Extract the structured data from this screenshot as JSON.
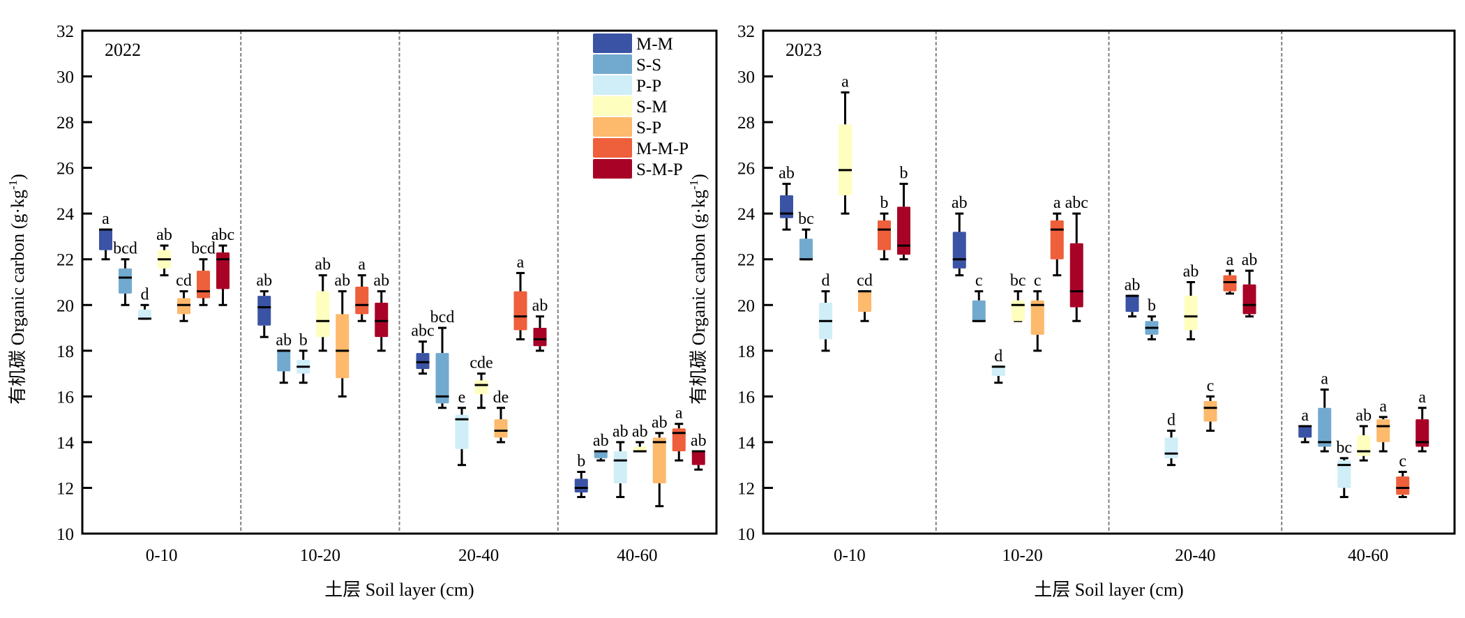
{
  "chart_data": [
    {
      "type": "box",
      "panel_label": "2022",
      "xlabel": "土层 Soil layer (cm)",
      "ylabel_main": "有机碳 Organic carbon (g·kg",
      "ylabel_sup": "-1",
      "ylabel_end": ")",
      "ylim": [
        10,
        32
      ],
      "yticks": [
        10,
        12,
        14,
        16,
        18,
        20,
        22,
        24,
        26,
        28,
        30,
        32
      ],
      "categories": [
        "0-10",
        "10-20",
        "20-40",
        "40-60"
      ],
      "legend_position": "top-right",
      "series": [
        {
          "name": "M-M",
          "color": "#3a53a4",
          "boxes": [
            {
              "wlo": 22.0,
              "q1": 22.4,
              "med": 23.3,
              "q3": 23.3,
              "whi": 23.3,
              "letter": "a"
            },
            {
              "wlo": 18.6,
              "q1": 19.1,
              "med": 19.9,
              "q3": 20.4,
              "whi": 20.6,
              "letter": "ab"
            },
            {
              "wlo": 17.0,
              "q1": 17.2,
              "med": 17.5,
              "q3": 17.9,
              "whi": 18.4,
              "letter": "abc"
            },
            {
              "wlo": 11.6,
              "q1": 11.8,
              "med": 12.0,
              "q3": 12.4,
              "whi": 12.7,
              "letter": "b"
            }
          ]
        },
        {
          "name": "S-S",
          "color": "#72aacf",
          "boxes": [
            {
              "wlo": 20.0,
              "q1": 20.5,
              "med": 21.2,
              "q3": 21.6,
              "whi": 22.0,
              "letter": "bcd"
            },
            {
              "wlo": 16.6,
              "q1": 17.1,
              "med": 18.0,
              "q3": 18.0,
              "whi": 18.0,
              "letter": "ab"
            },
            {
              "wlo": 15.5,
              "q1": 15.7,
              "med": 16.0,
              "q3": 17.9,
              "whi": 19.0,
              "letter": "bcd"
            },
            {
              "wlo": 13.2,
              "q1": 13.3,
              "med": 13.6,
              "q3": 13.6,
              "whi": 13.6,
              "letter": "ab"
            }
          ]
        },
        {
          "name": "P-P",
          "color": "#cfeef7",
          "boxes": [
            {
              "wlo": 19.4,
              "q1": 19.4,
              "med": 19.4,
              "q3": 19.8,
              "whi": 20.0,
              "letter": "d"
            },
            {
              "wlo": 16.6,
              "q1": 17.0,
              "med": 17.3,
              "q3": 17.6,
              "whi": 18.0,
              "letter": "b"
            },
            {
              "wlo": 13.0,
              "q1": 13.7,
              "med": 15.0,
              "q3": 15.2,
              "whi": 15.5,
              "letter": "e"
            },
            {
              "wlo": 11.6,
              "q1": 12.2,
              "med": 13.2,
              "q3": 13.6,
              "whi": 14.0,
              "letter": "ab"
            }
          ]
        },
        {
          "name": "S-M",
          "color": "#fefebf",
          "boxes": [
            {
              "wlo": 21.3,
              "q1": 21.6,
              "med": 22.0,
              "q3": 22.4,
              "whi": 22.6,
              "letter": "ab"
            },
            {
              "wlo": 18.0,
              "q1": 18.6,
              "med": 19.3,
              "q3": 20.6,
              "whi": 21.3,
              "letter": "ab"
            },
            {
              "wlo": 15.5,
              "q1": 16.1,
              "med": 16.5,
              "q3": 16.7,
              "whi": 17.0,
              "letter": "cde"
            },
            {
              "wlo": 13.6,
              "q1": 13.6,
              "med": 13.6,
              "q3": 13.8,
              "whi": 14.0,
              "letter": "ab"
            }
          ]
        },
        {
          "name": "S-P",
          "color": "#fdb96c",
          "boxes": [
            {
              "wlo": 19.3,
              "q1": 19.6,
              "med": 20.0,
              "q3": 20.3,
              "whi": 20.6,
              "letter": "cd"
            },
            {
              "wlo": 16.0,
              "q1": 16.8,
              "med": 18.0,
              "q3": 19.6,
              "whi": 20.6,
              "letter": "ab"
            },
            {
              "wlo": 14.0,
              "q1": 14.2,
              "med": 14.5,
              "q3": 15.0,
              "whi": 15.5,
              "letter": "de"
            },
            {
              "wlo": 11.2,
              "q1": 12.2,
              "med": 14.0,
              "q3": 14.2,
              "whi": 14.4,
              "letter": "ab"
            }
          ]
        },
        {
          "name": "M-M-P",
          "color": "#ee5f3b",
          "boxes": [
            {
              "wlo": 20.0,
              "q1": 20.3,
              "med": 20.6,
              "q3": 21.5,
              "whi": 22.0,
              "letter": "bcd"
            },
            {
              "wlo": 19.3,
              "q1": 19.6,
              "med": 20.0,
              "q3": 20.8,
              "whi": 21.3,
              "letter": "a"
            },
            {
              "wlo": 18.5,
              "q1": 18.9,
              "med": 19.5,
              "q3": 20.6,
              "whi": 21.4,
              "letter": "a"
            },
            {
              "wlo": 13.2,
              "q1": 13.6,
              "med": 14.4,
              "q3": 14.6,
              "whi": 14.8,
              "letter": "a"
            }
          ]
        },
        {
          "name": "S-M-P",
          "color": "#a80326",
          "boxes": [
            {
              "wlo": 20.0,
              "q1": 20.7,
              "med": 22.0,
              "q3": 22.3,
              "whi": 22.6,
              "letter": "abc"
            },
            {
              "wlo": 18.0,
              "q1": 18.6,
              "med": 19.3,
              "q3": 20.1,
              "whi": 20.6,
              "letter": "ab"
            },
            {
              "wlo": 18.0,
              "q1": 18.2,
              "med": 18.5,
              "q3": 19.0,
              "whi": 19.5,
              "letter": "ab"
            },
            {
              "wlo": 12.8,
              "q1": 13.0,
              "med": 13.6,
              "q3": 13.6,
              "whi": 13.6,
              "letter": "ab"
            }
          ]
        }
      ]
    },
    {
      "type": "box",
      "panel_label": "2023",
      "xlabel": "土层 Soil layer (cm)",
      "ylabel_main": "有机碳 Organic carbon (g·kg",
      "ylabel_sup": "-1",
      "ylabel_end": ")",
      "ylim": [
        10,
        32
      ],
      "yticks": [
        10,
        12,
        14,
        16,
        18,
        20,
        22,
        24,
        26,
        28,
        30,
        32
      ],
      "categories": [
        "0-10",
        "10-20",
        "20-40",
        "40-60"
      ],
      "legend_position": "none",
      "series": [
        {
          "name": "M-M",
          "color": "#3a53a4",
          "boxes": [
            {
              "wlo": 23.3,
              "q1": 23.8,
              "med": 24.0,
              "q3": 24.8,
              "whi": 25.3,
              "letter": "ab"
            },
            {
              "wlo": 21.3,
              "q1": 21.6,
              "med": 22.0,
              "q3": 23.2,
              "whi": 24.0,
              "letter": "ab"
            },
            {
              "wlo": 19.5,
              "q1": 19.7,
              "med": 20.4,
              "q3": 20.4,
              "whi": 20.4,
              "letter": "ab"
            },
            {
              "wlo": 14.0,
              "q1": 14.2,
              "med": 14.7,
              "q3": 14.7,
              "whi": 14.7,
              "letter": "a"
            }
          ]
        },
        {
          "name": "S-S",
          "color": "#72aacf",
          "boxes": [
            {
              "wlo": 22.0,
              "q1": 22.0,
              "med": 22.0,
              "q3": 22.9,
              "whi": 23.3,
              "letter": "bc"
            },
            {
              "wlo": 19.3,
              "q1": 19.3,
              "med": 19.3,
              "q3": 20.2,
              "whi": 20.6,
              "letter": "c"
            },
            {
              "wlo": 18.5,
              "q1": 18.7,
              "med": 19.0,
              "q3": 19.3,
              "whi": 19.5,
              "letter": "b"
            },
            {
              "wlo": 13.6,
              "q1": 13.8,
              "med": 14.0,
              "q3": 15.5,
              "whi": 16.3,
              "letter": "a"
            }
          ]
        },
        {
          "name": "P-P",
          "color": "#cfeef7",
          "boxes": [
            {
              "wlo": 18.0,
              "q1": 18.5,
              "med": 19.3,
              "q3": 20.1,
              "whi": 20.6,
              "letter": "d"
            },
            {
              "wlo": 16.6,
              "q1": 16.9,
              "med": 17.3,
              "q3": 17.3,
              "whi": 17.3,
              "letter": "d"
            },
            {
              "wlo": 13.0,
              "q1": 13.3,
              "med": 13.5,
              "q3": 14.2,
              "whi": 14.5,
              "letter": "d"
            },
            {
              "wlo": 11.6,
              "q1": 12.0,
              "med": 13.0,
              "q3": 13.2,
              "whi": 13.3,
              "letter": "bc"
            }
          ]
        },
        {
          "name": "S-M",
          "color": "#fefebf",
          "boxes": [
            {
              "wlo": 24.0,
              "q1": 24.8,
              "med": 25.9,
              "q3": 27.9,
              "whi": 29.3,
              "letter": "a"
            },
            {
              "wlo": 19.3,
              "q1": 19.3,
              "med": 20.0,
              "q3": 20.2,
              "whi": 20.6,
              "letter": "bc"
            },
            {
              "wlo": 18.5,
              "q1": 18.9,
              "med": 19.5,
              "q3": 20.4,
              "whi": 21.0,
              "letter": "ab"
            },
            {
              "wlo": 13.2,
              "q1": 13.4,
              "med": 13.6,
              "q3": 14.3,
              "whi": 14.7,
              "letter": "ab"
            }
          ]
        },
        {
          "name": "S-P",
          "color": "#fdb96c",
          "boxes": [
            {
              "wlo": 19.3,
              "q1": 19.7,
              "med": 20.6,
              "q3": 20.6,
              "whi": 20.6,
              "letter": "cd"
            },
            {
              "wlo": 18.0,
              "q1": 18.7,
              "med": 20.0,
              "q3": 20.2,
              "whi": 20.6,
              "letter": "c"
            },
            {
              "wlo": 14.5,
              "q1": 14.9,
              "med": 15.5,
              "q3": 15.8,
              "whi": 16.0,
              "letter": "c"
            },
            {
              "wlo": 13.6,
              "q1": 14.0,
              "med": 14.7,
              "q3": 15.0,
              "whi": 15.1,
              "letter": "a"
            }
          ]
        },
        {
          "name": "M-M-P",
          "color": "#ee5f3b",
          "boxes": [
            {
              "wlo": 22.0,
              "q1": 22.4,
              "med": 23.3,
              "q3": 23.7,
              "whi": 24.0,
              "letter": "b"
            },
            {
              "wlo": 21.3,
              "q1": 22.0,
              "med": 23.3,
              "q3": 23.7,
              "whi": 24.0,
              "letter": "a"
            },
            {
              "wlo": 20.5,
              "q1": 20.6,
              "med": 21.0,
              "q3": 21.3,
              "whi": 21.5,
              "letter": "a"
            },
            {
              "wlo": 11.6,
              "q1": 11.7,
              "med": 12.0,
              "q3": 12.5,
              "whi": 12.7,
              "letter": "c"
            }
          ]
        },
        {
          "name": "S-M-P",
          "color": "#a80326",
          "boxes": [
            {
              "wlo": 22.0,
              "q1": 22.2,
              "med": 22.6,
              "q3": 24.3,
              "whi": 25.3,
              "letter": "b"
            },
            {
              "wlo": 19.3,
              "q1": 19.9,
              "med": 20.6,
              "q3": 22.7,
              "whi": 24.0,
              "letter": "abc"
            },
            {
              "wlo": 19.5,
              "q1": 19.6,
              "med": 20.0,
              "q3": 20.9,
              "whi": 21.5,
              "letter": "ab"
            },
            {
              "wlo": 13.6,
              "q1": 13.8,
              "med": 14.0,
              "q3": 15.0,
              "whi": 15.5,
              "letter": "a"
            }
          ]
        }
      ]
    }
  ]
}
